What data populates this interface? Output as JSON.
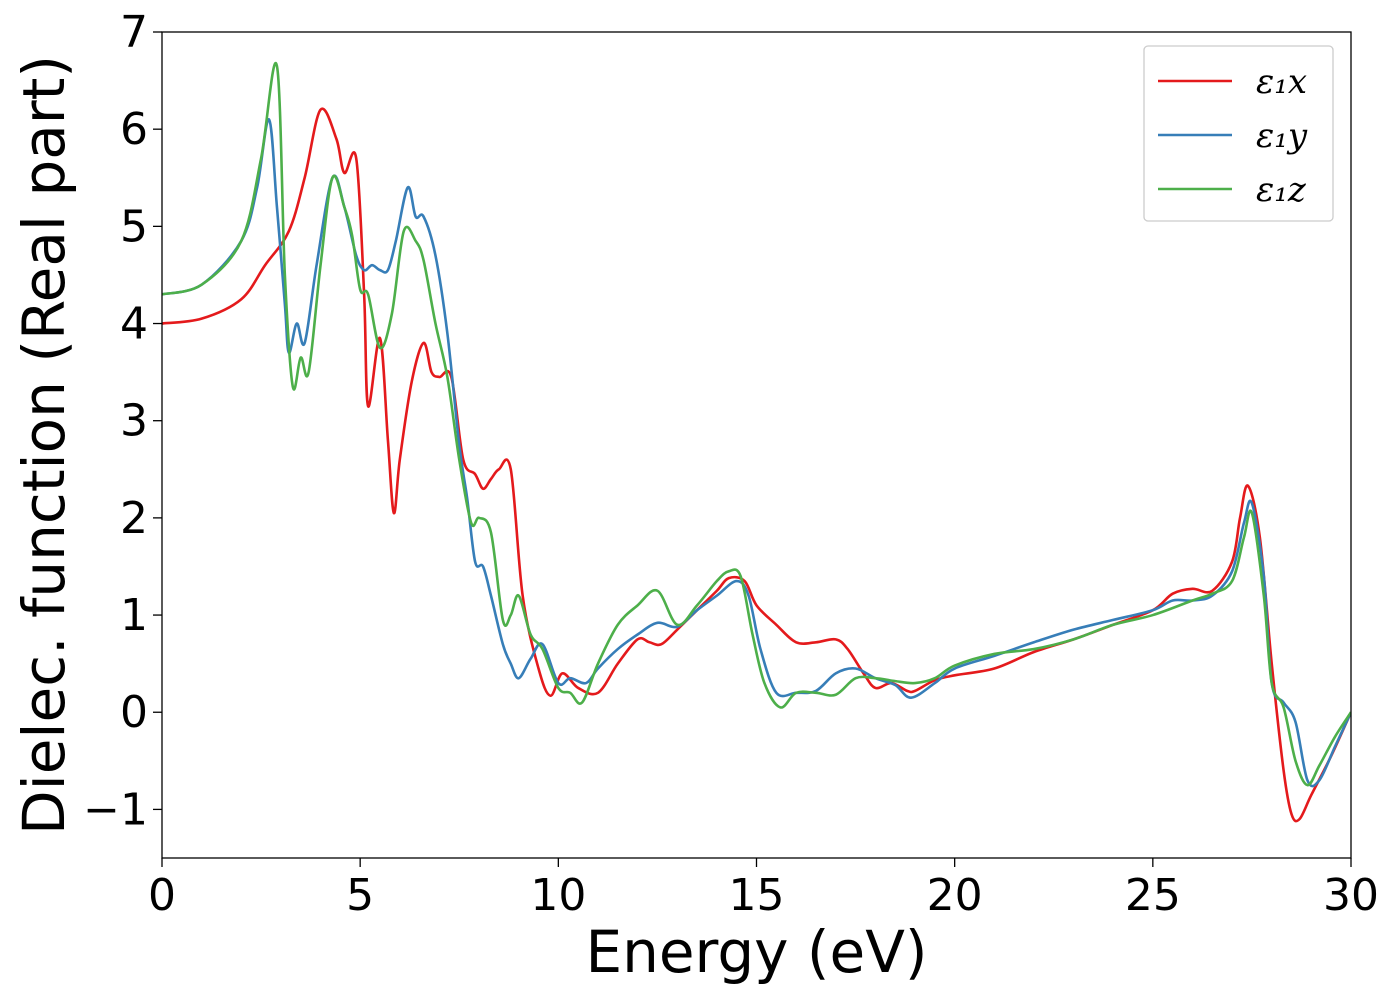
{
  "chart_data": {
    "type": "line",
    "title": "",
    "xlabel": "Energy (eV)",
    "ylabel": "Dielec. function (Real part)",
    "xlim": [
      0,
      30
    ],
    "ylim": [
      -1.5,
      7.0
    ],
    "xticks": [
      0,
      5,
      10,
      15,
      20,
      25,
      30
    ],
    "xtick_labels": [
      "0",
      "5",
      "10",
      "15",
      "20",
      "25",
      "30"
    ],
    "yticks": [
      -1,
      0,
      1,
      2,
      3,
      4,
      5,
      6,
      7
    ],
    "ytick_labels": [
      "−1",
      "0",
      "1",
      "2",
      "3",
      "4",
      "5",
      "6",
      "7"
    ],
    "grid": false,
    "legend_position": "top-right",
    "series": [
      {
        "name": "ε₁x",
        "color": "#e41a1c",
        "x": [
          0,
          1,
          2,
          2.6,
          3.2,
          3.6,
          4.0,
          4.4,
          4.6,
          4.9,
          5.1,
          5.2,
          5.5,
          5.7,
          5.85,
          6.0,
          6.3,
          6.6,
          6.8,
          7.0,
          7.3,
          7.6,
          7.9,
          8.1,
          8.3,
          8.5,
          8.8,
          9.1,
          9.5,
          9.8,
          10.1,
          10.5,
          11.0,
          11.5,
          12.0,
          12.3,
          12.6,
          13.0,
          13.5,
          14.0,
          14.3,
          14.7,
          15.0,
          15.5,
          16.0,
          16.5,
          17.0,
          17.3,
          17.7,
          18.0,
          18.4,
          18.8,
          19.0,
          19.5,
          20.0,
          21.0,
          22.0,
          23.0,
          24.0,
          25.0,
          25.5,
          26.0,
          26.5,
          27.0,
          27.2,
          27.4,
          27.7,
          28.0,
          28.3,
          28.5,
          28.7,
          29.0,
          29.5,
          30.0
        ],
        "y": [
          4.0,
          4.05,
          4.25,
          4.6,
          4.95,
          5.5,
          6.2,
          5.9,
          5.55,
          5.7,
          4.3,
          3.15,
          3.85,
          2.8,
          2.05,
          2.6,
          3.4,
          3.8,
          3.5,
          3.45,
          3.45,
          2.6,
          2.45,
          2.3,
          2.4,
          2.5,
          2.5,
          1.2,
          0.45,
          0.17,
          0.4,
          0.25,
          0.2,
          0.5,
          0.75,
          0.72,
          0.7,
          0.85,
          1.05,
          1.25,
          1.38,
          1.35,
          1.1,
          0.9,
          0.72,
          0.72,
          0.75,
          0.65,
          0.4,
          0.25,
          0.3,
          0.22,
          0.22,
          0.33,
          0.38,
          0.45,
          0.62,
          0.75,
          0.9,
          1.05,
          1.22,
          1.27,
          1.25,
          1.55,
          2.0,
          2.33,
          1.8,
          0.5,
          -0.6,
          -1.05,
          -1.1,
          -0.85,
          -0.45,
          0.0
        ]
      },
      {
        "name": "ε₁y",
        "color": "#377eb8",
        "x": [
          0,
          1,
          2,
          2.4,
          2.7,
          2.9,
          3.1,
          3.2,
          3.4,
          3.6,
          3.9,
          4.3,
          4.6,
          4.9,
          5.1,
          5.3,
          5.5,
          5.7,
          5.9,
          6.2,
          6.4,
          6.6,
          6.9,
          7.2,
          7.5,
          7.7,
          7.9,
          8.1,
          8.3,
          8.6,
          8.8,
          9.0,
          9.3,
          9.6,
          10.0,
          10.3,
          10.7,
          11.0,
          11.5,
          12.0,
          12.5,
          13.0,
          13.5,
          14.0,
          14.5,
          14.8,
          15.1,
          15.5,
          16.0,
          16.5,
          17.0,
          17.5,
          18.0,
          18.5,
          18.9,
          19.5,
          20.0,
          21.0,
          22.0,
          23.0,
          24.0,
          25.0,
          25.5,
          26.0,
          26.5,
          27.0,
          27.3,
          27.5,
          27.8,
          28.0,
          28.3,
          28.6,
          28.9,
          29.2,
          29.6,
          30.0
        ],
        "y": [
          4.3,
          4.4,
          4.85,
          5.4,
          6.1,
          5.2,
          4.2,
          3.7,
          4.0,
          3.8,
          4.6,
          5.5,
          5.2,
          4.7,
          4.55,
          4.6,
          4.55,
          4.55,
          4.85,
          5.4,
          5.1,
          5.1,
          4.7,
          3.9,
          2.75,
          2.2,
          1.55,
          1.5,
          1.2,
          0.7,
          0.5,
          0.35,
          0.55,
          0.7,
          0.3,
          0.35,
          0.3,
          0.45,
          0.65,
          0.8,
          0.92,
          0.88,
          1.05,
          1.2,
          1.35,
          1.2,
          0.65,
          0.2,
          0.2,
          0.22,
          0.4,
          0.45,
          0.35,
          0.28,
          0.15,
          0.3,
          0.45,
          0.58,
          0.72,
          0.85,
          0.95,
          1.05,
          1.15,
          1.15,
          1.2,
          1.45,
          1.95,
          2.15,
          1.4,
          0.3,
          0.1,
          -0.1,
          -0.7,
          -0.7,
          -0.35,
          0.0
        ]
      },
      {
        "name": "ε₁z",
        "color": "#4daf4a",
        "x": [
          0,
          1,
          2,
          2.5,
          2.9,
          3.1,
          3.3,
          3.5,
          3.7,
          4.0,
          4.3,
          4.6,
          4.8,
          5.0,
          5.2,
          5.5,
          5.8,
          6.1,
          6.4,
          6.6,
          6.9,
          7.2,
          7.5,
          7.8,
          8.0,
          8.3,
          8.6,
          8.8,
          9.0,
          9.3,
          9.6,
          10.0,
          10.3,
          10.6,
          11.0,
          11.5,
          12.0,
          12.5,
          13.0,
          13.5,
          14.0,
          14.3,
          14.6,
          14.9,
          15.2,
          15.6,
          16.0,
          16.5,
          17.0,
          17.5,
          18.0,
          18.5,
          19.0,
          19.5,
          20.0,
          21.0,
          22.0,
          23.0,
          24.0,
          25.0,
          26.0,
          26.5,
          27.0,
          27.3,
          27.5,
          27.8,
          28.0,
          28.3,
          28.6,
          28.9,
          29.2,
          29.6,
          30.0
        ],
        "y": [
          4.3,
          4.4,
          4.85,
          5.7,
          6.65,
          4.5,
          3.35,
          3.65,
          3.5,
          4.6,
          5.5,
          5.2,
          4.9,
          4.35,
          4.3,
          3.75,
          4.1,
          4.95,
          4.85,
          4.65,
          4.0,
          3.45,
          2.6,
          1.95,
          2.0,
          1.85,
          0.95,
          1.0,
          1.2,
          0.8,
          0.65,
          0.25,
          0.2,
          0.1,
          0.5,
          0.9,
          1.1,
          1.25,
          0.9,
          1.1,
          1.35,
          1.45,
          1.4,
          0.8,
          0.3,
          0.05,
          0.2,
          0.2,
          0.18,
          0.35,
          0.35,
          0.32,
          0.3,
          0.35,
          0.48,
          0.6,
          0.65,
          0.75,
          0.9,
          1.0,
          1.15,
          1.22,
          1.35,
          1.8,
          2.05,
          1.2,
          0.3,
          0.05,
          -0.5,
          -0.75,
          -0.55,
          -0.25,
          0.0
        ]
      }
    ]
  }
}
